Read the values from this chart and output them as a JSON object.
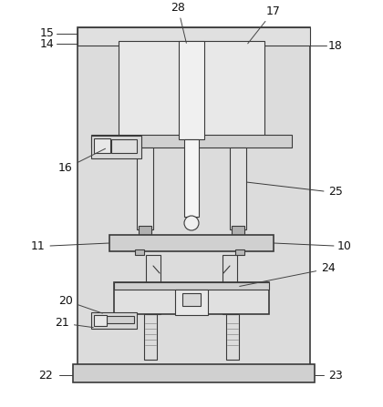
{
  "bg_color": "#ffffff",
  "frame_bg": "#e8e8e8",
  "line_color": "#3a3a3a",
  "fig_width": 4.2,
  "fig_height": 4.47,
  "dpi": 100
}
